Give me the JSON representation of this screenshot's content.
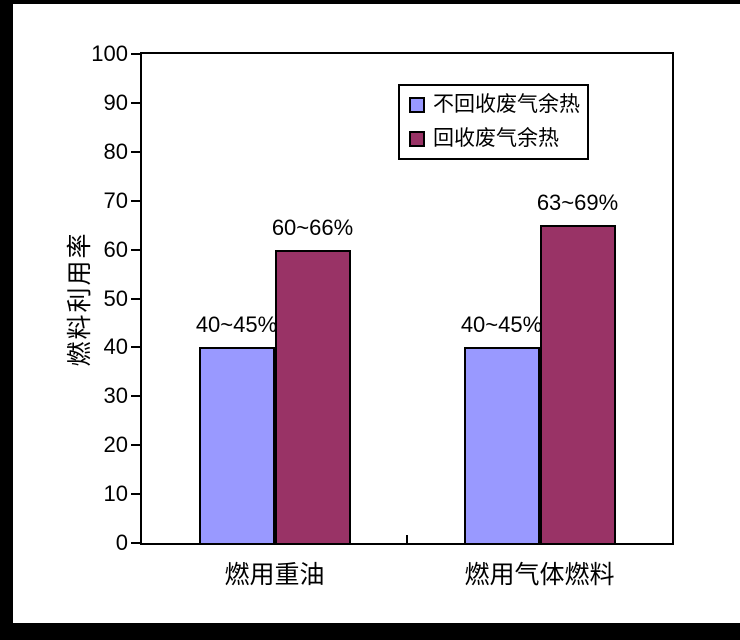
{
  "frame": {
    "outer_background": "#000000",
    "page_background": "#ffffff"
  },
  "chart_data": {
    "type": "bar",
    "categories": [
      "燃用重油",
      "燃用气体燃料"
    ],
    "series": [
      {
        "name": "不回收废气余热",
        "color": "#9999FF",
        "values": [
          40,
          40
        ],
        "data_labels": [
          "40~45%",
          "40~45%"
        ]
      },
      {
        "name": "回收废气余热",
        "color": "#993366",
        "values": [
          60,
          65
        ],
        "data_labels": [
          "60~66%",
          "63~69%"
        ]
      }
    ],
    "title": "",
    "xlabel": "",
    "ylabel": "燃料利用率",
    "ylim": [
      0,
      100
    ],
    "yticks": [
      0,
      10,
      20,
      30,
      40,
      50,
      60,
      70,
      80,
      90,
      100
    ],
    "grid": false,
    "legend_position": "top-right-inside",
    "bar_border_color": "#000000",
    "axis_color": "#000000"
  }
}
